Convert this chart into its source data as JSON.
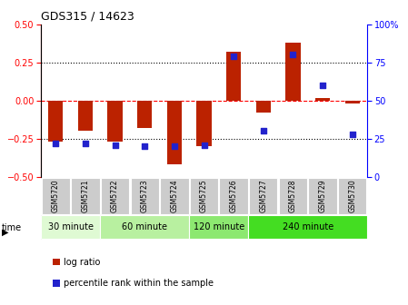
{
  "title": "GDS315 / 14623",
  "samples": [
    "GSM5720",
    "GSM5721",
    "GSM5722",
    "GSM5723",
    "GSM5724",
    "GSM5725",
    "GSM5726",
    "GSM5727",
    "GSM5728",
    "GSM5729",
    "GSM5730"
  ],
  "log_ratio": [
    -0.27,
    -0.2,
    -0.27,
    -0.18,
    -0.42,
    -0.3,
    0.32,
    -0.08,
    0.38,
    0.02,
    -0.02
  ],
  "percentile": [
    22,
    22,
    21,
    20,
    20,
    21,
    79,
    30,
    80,
    60,
    28
  ],
  "time_groups": [
    {
      "label": "30 minute",
      "start": 0,
      "end": 1,
      "color": "#dffad3"
    },
    {
      "label": "60 minute",
      "start": 2,
      "end": 4,
      "color": "#b8f0a0"
    },
    {
      "label": "120 minute",
      "start": 5,
      "end": 6,
      "color": "#8ce870"
    },
    {
      "label": "240 minute",
      "start": 7,
      "end": 10,
      "color": "#44dd22"
    }
  ],
  "bar_color": "#bb2200",
  "dot_color": "#2222cc",
  "ylim_left": [
    -0.5,
    0.5
  ],
  "ylim_right": [
    0,
    100
  ],
  "yticks_left": [
    -0.5,
    -0.25,
    0,
    0.25,
    0.5
  ],
  "yticks_right": [
    0,
    25,
    50,
    75,
    100
  ],
  "hlines": [
    -0.25,
    0.0,
    0.25
  ],
  "hline_styles": [
    "dotted",
    "dashed",
    "dotted"
  ],
  "hline_colors": [
    "black",
    "red",
    "black"
  ]
}
